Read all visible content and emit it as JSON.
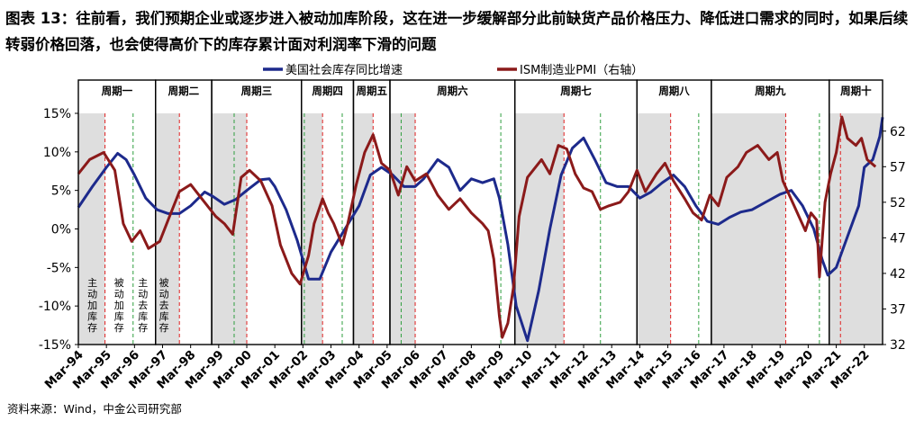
{
  "title": "图表 13：往前看，我们预期企业或逐步进入被动加库阶段，这在进一步缓解部分此前缺货产品价格压力、降低进口需求的同时，如果后续转弱价格回落，也会使得高价下的库存累计面对利润率下滑的问题",
  "source": "资料来源：Wind，中金公司研究部",
  "colors": {
    "inventory": "#1d2a8c",
    "pmi": "#8b1a1a",
    "shade": "#dedede",
    "red_dash": "#e02020",
    "green_dash": "#2e9e3e"
  },
  "chart_data": {
    "type": "line",
    "legend_position": "top",
    "series": [
      {
        "name": "美国社会库存同比增速",
        "axis": "left",
        "color": "#1d2a8c",
        "points": [
          [
            1994.0,
            2.8
          ],
          [
            1994.5,
            5.5
          ],
          [
            1995.0,
            8
          ],
          [
            1995.4,
            9.8
          ],
          [
            1995.7,
            9
          ],
          [
            1996.0,
            7
          ],
          [
            1996.4,
            4
          ],
          [
            1996.8,
            2.5
          ],
          [
            1997.2,
            2
          ],
          [
            1997.6,
            2
          ],
          [
            1998.0,
            3
          ],
          [
            1998.5,
            4.8
          ],
          [
            1998.8,
            4.2
          ],
          [
            1999.2,
            3.2
          ],
          [
            1999.6,
            3.8
          ],
          [
            2000.0,
            5
          ],
          [
            2000.5,
            6.4
          ],
          [
            2000.8,
            6.5
          ],
          [
            2001.0,
            5.5
          ],
          [
            2001.4,
            2.5
          ],
          [
            2001.8,
            -1.5
          ],
          [
            2002.2,
            -6.5
          ],
          [
            2002.6,
            -6.5
          ],
          [
            2003.0,
            -3
          ],
          [
            2003.5,
            0
          ],
          [
            2004.0,
            3
          ],
          [
            2004.4,
            7
          ],
          [
            2004.8,
            8
          ],
          [
            2005.2,
            7
          ],
          [
            2005.6,
            5.5
          ],
          [
            2006.0,
            5.5
          ],
          [
            2006.3,
            6.5
          ],
          [
            2006.8,
            9
          ],
          [
            2007.2,
            8
          ],
          [
            2007.6,
            5
          ],
          [
            2008.0,
            6.5
          ],
          [
            2008.4,
            6
          ],
          [
            2008.8,
            6.5
          ],
          [
            2009.0,
            4
          ],
          [
            2009.3,
            -2
          ],
          [
            2009.6,
            -10
          ],
          [
            2010.0,
            -14.5
          ],
          [
            2010.4,
            -8
          ],
          [
            2010.8,
            0
          ],
          [
            2011.2,
            7
          ],
          [
            2011.6,
            10.5
          ],
          [
            2012.0,
            11.8
          ],
          [
            2012.4,
            9
          ],
          [
            2012.8,
            6
          ],
          [
            2013.2,
            5.5
          ],
          [
            2013.6,
            5.5
          ],
          [
            2014.0,
            4
          ],
          [
            2014.4,
            4.8
          ],
          [
            2014.8,
            6
          ],
          [
            2015.2,
            7
          ],
          [
            2015.6,
            5.5
          ],
          [
            2016.0,
            3
          ],
          [
            2016.4,
            1
          ],
          [
            2016.8,
            0.6
          ],
          [
            2017.2,
            1.5
          ],
          [
            2017.6,
            2.2
          ],
          [
            2018.0,
            2.5
          ],
          [
            2018.5,
            3.5
          ],
          [
            2019.0,
            4.5
          ],
          [
            2019.4,
            5
          ],
          [
            2019.8,
            3
          ],
          [
            2020.2,
            0
          ],
          [
            2020.5,
            -4
          ],
          [
            2020.7,
            -6
          ],
          [
            2021.0,
            -5
          ],
          [
            2021.4,
            -1
          ],
          [
            2021.8,
            3
          ],
          [
            2022.0,
            8
          ],
          [
            2022.3,
            9
          ],
          [
            2022.55,
            12
          ],
          [
            2022.65,
            14.5
          ]
        ]
      },
      {
        "name": "ISM制造业PMI（右轴）",
        "axis": "right",
        "color": "#8b1a1a",
        "points": [
          [
            1994.0,
            56
          ],
          [
            1994.4,
            58
          ],
          [
            1994.9,
            59
          ],
          [
            1995.3,
            56.5
          ],
          [
            1995.6,
            49
          ],
          [
            1995.9,
            46.5
          ],
          [
            1996.2,
            48
          ],
          [
            1996.5,
            45.5
          ],
          [
            1996.9,
            46.5
          ],
          [
            1997.2,
            49.5
          ],
          [
            1997.6,
            53.5
          ],
          [
            1998.0,
            54.5
          ],
          [
            1998.4,
            52.5
          ],
          [
            1998.9,
            50
          ],
          [
            1999.2,
            49
          ],
          [
            1999.5,
            47.5
          ],
          [
            1999.8,
            55.5
          ],
          [
            2000.1,
            56.5
          ],
          [
            2000.5,
            55
          ],
          [
            2000.9,
            51.5
          ],
          [
            2001.2,
            46
          ],
          [
            2001.6,
            42
          ],
          [
            2001.9,
            40.5
          ],
          [
            2002.2,
            44.5
          ],
          [
            2002.4,
            49
          ],
          [
            2002.7,
            52.5
          ],
          [
            2002.9,
            50.5
          ],
          [
            2003.1,
            49
          ],
          [
            2003.4,
            46
          ],
          [
            2003.6,
            49
          ],
          [
            2003.9,
            54.5
          ],
          [
            2004.2,
            59
          ],
          [
            2004.5,
            61.5
          ],
          [
            2004.8,
            57.5
          ],
          [
            2005.1,
            56.5
          ],
          [
            2005.4,
            53
          ],
          [
            2005.7,
            57
          ],
          [
            2006.0,
            55
          ],
          [
            2006.4,
            56
          ],
          [
            2006.8,
            53
          ],
          [
            2007.2,
            51
          ],
          [
            2007.6,
            52.5
          ],
          [
            2008.0,
            50.5
          ],
          [
            2008.4,
            49
          ],
          [
            2008.6,
            48
          ],
          [
            2008.8,
            44
          ],
          [
            2009.0,
            36
          ],
          [
            2009.1,
            33
          ],
          [
            2009.3,
            35
          ],
          [
            2009.5,
            40
          ],
          [
            2009.7,
            50
          ],
          [
            2010.0,
            55.5
          ],
          [
            2010.5,
            58
          ],
          [
            2010.8,
            56
          ],
          [
            2011.1,
            60
          ],
          [
            2011.4,
            59.5
          ],
          [
            2011.7,
            56
          ],
          [
            2012.0,
            54
          ],
          [
            2012.3,
            53.5
          ],
          [
            2012.6,
            51
          ],
          [
            2012.9,
            51.5
          ],
          [
            2013.3,
            52
          ],
          [
            2013.6,
            53.5
          ],
          [
            2013.9,
            56.5
          ],
          [
            2014.2,
            53.5
          ],
          [
            2014.6,
            56
          ],
          [
            2014.9,
            57.5
          ],
          [
            2015.2,
            55
          ],
          [
            2015.6,
            52.5
          ],
          [
            2015.9,
            50.5
          ],
          [
            2016.2,
            49.5
          ],
          [
            2016.5,
            53
          ],
          [
            2016.8,
            51.5
          ],
          [
            2017.1,
            55.5
          ],
          [
            2017.5,
            57
          ],
          [
            2017.8,
            59
          ],
          [
            2018.2,
            60
          ],
          [
            2018.6,
            58
          ],
          [
            2018.9,
            59
          ],
          [
            2019.1,
            55
          ],
          [
            2019.5,
            51.5
          ],
          [
            2019.9,
            48
          ],
          [
            2020.1,
            50.5
          ],
          [
            2020.3,
            49.5
          ],
          [
            2020.4,
            41.5
          ],
          [
            2020.6,
            52
          ],
          [
            2020.8,
            56
          ],
          [
            2021.0,
            59
          ],
          [
            2021.2,
            64
          ],
          [
            2021.4,
            61
          ],
          [
            2021.7,
            60
          ],
          [
            2021.9,
            61
          ],
          [
            2022.1,
            58
          ],
          [
            2022.4,
            57
          ]
        ]
      }
    ],
    "left_axis": {
      "ticks": [
        15,
        10,
        5,
        0,
        -5,
        -10,
        -15
      ],
      "tick_labels": [
        "15%",
        "10%",
        "5%",
        "0%",
        "-5%",
        "-10%",
        "-15%"
      ],
      "ylim": [
        -15,
        15
      ]
    },
    "right_axis": {
      "ticks": [
        62,
        57,
        52,
        47,
        42,
        37,
        32
      ],
      "ylim": [
        32,
        64.5
      ]
    },
    "x_axis": {
      "xlim": [
        1994.0,
        2022.65
      ],
      "ticks": [
        1994,
        1995,
        1996,
        1997,
        1998,
        1999,
        2000,
        2001,
        2002,
        2003,
        2004,
        2005,
        2006,
        2007,
        2008,
        2009,
        2010,
        2011,
        2012,
        2013,
        2014,
        2015,
        2016,
        2017,
        2018,
        2019,
        2020,
        2021,
        2022
      ],
      "tick_labels": [
        "Mar-94",
        "Mar-95",
        "Mar-96",
        "Mar-97",
        "Mar-98",
        "Mar-99",
        "Mar-00",
        "Mar-01",
        "Mar-02",
        "Mar-03",
        "Mar-04",
        "Mar-05",
        "Mar-06",
        "Mar-07",
        "Mar-08",
        "Mar-09",
        "Mar-10",
        "Mar-11",
        "Mar-12",
        "Mar-13",
        "Mar-14",
        "Mar-15",
        "Mar-16",
        "Mar-17",
        "Mar-18",
        "Mar-19",
        "Mar-20",
        "Mar-21",
        "Mar-22"
      ]
    },
    "cycles": [
      {
        "label": "周期一",
        "start": 1994.0,
        "end": 1996.75
      },
      {
        "label": "周期二",
        "start": 1996.75,
        "end": 1998.75
      },
      {
        "label": "周期三",
        "start": 1998.75,
        "end": 2001.95
      },
      {
        "label": "周期四",
        "start": 2001.95,
        "end": 2003.8
      },
      {
        "label": "周期五",
        "start": 2003.8,
        "end": 2005.1
      },
      {
        "label": "周期六",
        "start": 2005.1,
        "end": 2009.55
      },
      {
        "label": "周期七",
        "start": 2009.55,
        "end": 2013.9
      },
      {
        "label": "周期八",
        "start": 2013.9,
        "end": 2016.55
      },
      {
        "label": "周期九",
        "start": 2016.55,
        "end": 2020.75
      },
      {
        "label": "周期十",
        "start": 2020.75,
        "end": 2022.65
      }
    ],
    "shaded_periods": [
      [
        1994.0,
        1994.95
      ],
      [
        1996.75,
        1997.6
      ],
      [
        1998.75,
        2000.0
      ],
      [
        2001.95,
        2002.7
      ],
      [
        2003.8,
        2004.5
      ],
      [
        2005.1,
        2006.0
      ],
      [
        2009.55,
        2011.3
      ],
      [
        2013.9,
        2015.1
      ],
      [
        2016.55,
        2019.2
      ],
      [
        2020.75,
        2022.65
      ]
    ],
    "red_dashed": [
      1994.95,
      1997.6,
      2000.0,
      2002.7,
      2004.5,
      2006.0,
      2011.3,
      2015.1,
      2019.2,
      2021.15
    ],
    "green_dashed": [
      1995.95,
      1999.55,
      2002.05,
      2003.4,
      2005.5,
      2009.05,
      2012.6,
      2016.1,
      2020.4
    ],
    "phase_labels": [
      {
        "text": "主动加库存",
        "x": 1994.5
      },
      {
        "text": "被动加库存",
        "x": 1995.45
      },
      {
        "text": "主动去库存",
        "x": 1996.3
      },
      {
        "text": "被动去库存",
        "x": 1997.05
      }
    ]
  }
}
